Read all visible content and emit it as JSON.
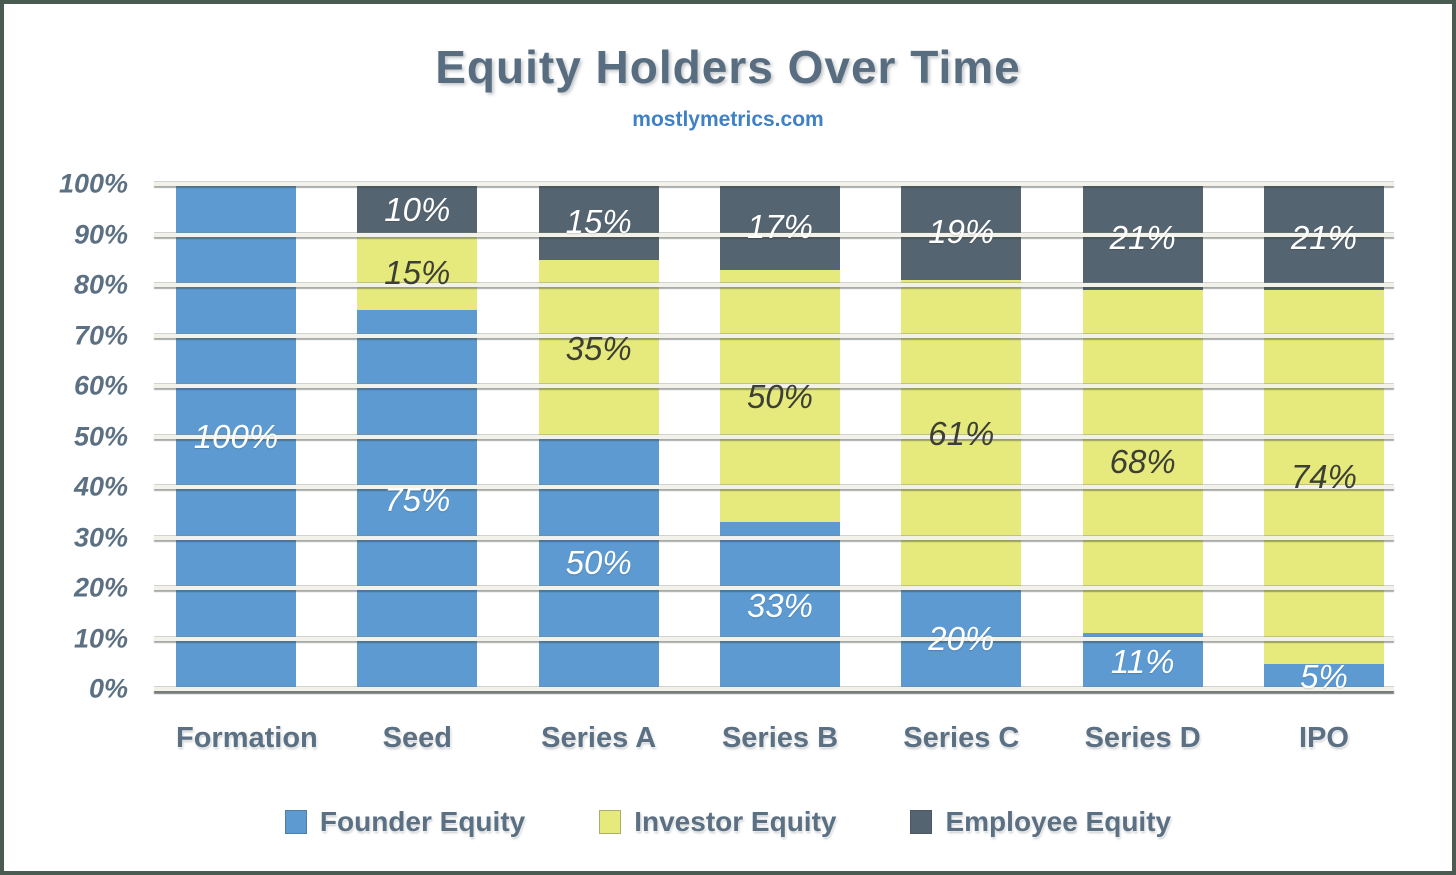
{
  "title": "Equity Holders Over Time",
  "subtitle": "mostlymetrics.com",
  "colors": {
    "founder_blue": "#5c9ad1",
    "investor_yellow": "#e6e97b",
    "employee_slate": "#556471",
    "axis_text": "#5c7083",
    "title_text": "#586d80",
    "subtitle_text": "#4080c4",
    "frame_border": "#4a5b51",
    "background": "#ffffff"
  },
  "chart_data": {
    "type": "bar",
    "stacked": true,
    "title": "Equity Holders Over Time",
    "subtitle": "mostlymetrics.com",
    "xlabel": "",
    "ylabel": "",
    "ylim": [
      0,
      100
    ],
    "grid": true,
    "legend_position": "bottom",
    "y_ticks": [
      "100%",
      "90%",
      "80%",
      "70%",
      "60%",
      "50%",
      "40%",
      "30%",
      "20%",
      "10%",
      "0%"
    ],
    "categories": [
      "Formation",
      "Seed",
      "Series A",
      "Series B",
      "Series C",
      "Series D",
      "IPO"
    ],
    "series": [
      {
        "name": "Founder Equity",
        "color": "#5c9ad1",
        "label_color": "#ffffff",
        "values": [
          100,
          75,
          50,
          33,
          20,
          11,
          5
        ]
      },
      {
        "name": "Investor Equity",
        "color": "#e6e97b",
        "label_color": "#3c3f36",
        "values": [
          0,
          15,
          35,
          50,
          61,
          68,
          74
        ]
      },
      {
        "name": "Employee Equity",
        "color": "#556471",
        "label_color": "#ffffff",
        "values": [
          0,
          10,
          15,
          17,
          19,
          21,
          21
        ]
      }
    ]
  }
}
